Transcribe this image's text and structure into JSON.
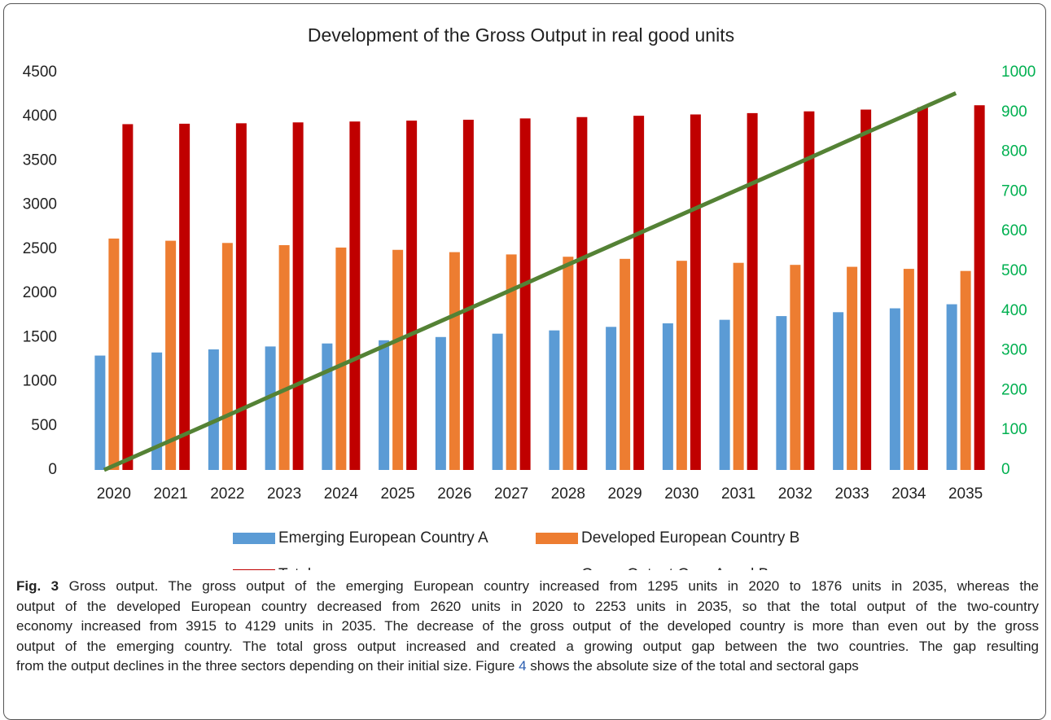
{
  "chart_data": {
    "type": "bar_line",
    "title": "Development of the Gross Output in real good units",
    "categories": [
      "2020",
      "2021",
      "2022",
      "2023",
      "2024",
      "2025",
      "2026",
      "2027",
      "2028",
      "2029",
      "2030",
      "2031",
      "2032",
      "2033",
      "2034",
      "2035"
    ],
    "series": [
      {
        "name": "Emerging European Country A",
        "type": "bar",
        "color": "#5b9bd5",
        "values": [
          1295,
          1330,
          1365,
          1398,
          1432,
          1468,
          1505,
          1543,
          1580,
          1620,
          1660,
          1700,
          1742,
          1786,
          1830,
          1876
        ]
      },
      {
        "name": "Developed European Country B",
        "type": "bar",
        "color": "#ed7d31",
        "values": [
          2620,
          2595,
          2570,
          2545,
          2518,
          2492,
          2466,
          2440,
          2414,
          2390,
          2368,
          2345,
          2322,
          2300,
          2277,
          2253
        ]
      },
      {
        "name": "Total economy",
        "type": "bar",
        "color": "#c00000",
        "values": [
          3915,
          3920,
          3925,
          3935,
          3945,
          3955,
          3965,
          3980,
          3995,
          4010,
          4025,
          4040,
          4060,
          4080,
          4105,
          4129
        ]
      },
      {
        "name": "Gross Output Gap, A and B",
        "type": "line",
        "axis": "y2",
        "color": "#548235",
        "values": [
          0,
          63,
          126,
          190,
          253,
          316,
          379,
          442,
          506,
          569,
          632,
          695,
          758,
          822,
          885,
          948
        ]
      }
    ],
    "ylim": [
      0,
      4500
    ],
    "yticks": [
      0,
      500,
      1000,
      1500,
      2000,
      2500,
      3000,
      3500,
      4000,
      4500
    ],
    "y2lim": [
      0,
      1000
    ],
    "y2ticks": [
      0,
      100,
      200,
      300,
      400,
      500,
      600,
      700,
      800,
      900,
      1000
    ],
    "y2color": "#00b050",
    "grid": false,
    "legend": "bottom"
  },
  "caption": {
    "label": "Fig. 3",
    "lines": [
      " Gross output. The gross output of the emerging European country increased from 1295 units in 2020 to 1876 units in 2035, whereas the",
      "output of the developed European country decreased from 2620 units in 2020 to 2253 units in 2035, so that the total output of the two-country",
      "economy increased from 3915 to 4129 units in 2035. The decrease of the gross output of the developed country is more than even out by the gross",
      "output of the emerging country. The total gross output increased and created a growing output gap between the two countries. The gap resulting",
      "from the output declines in the three sectors depending on their initial size. Figure "
    ],
    "ref": "4",
    "end": " shows the absolute size of the total and sectoral gaps"
  }
}
